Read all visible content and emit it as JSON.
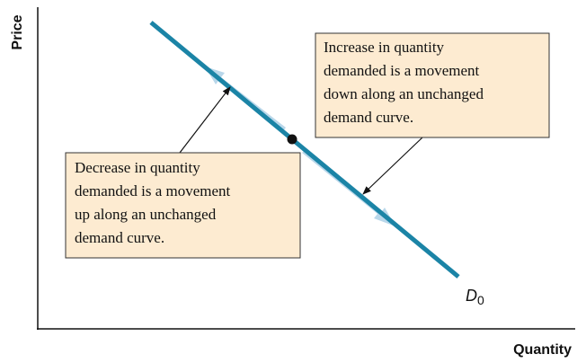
{
  "axes": {
    "y_label": "Price",
    "x_label": "Quantity"
  },
  "curve": {
    "label": "D",
    "subscript": "0"
  },
  "annotations": [
    {
      "lines": [
        "Increase in quantity",
        "demanded is a movement",
        "down along an unchanged",
        "demand curve."
      ]
    },
    {
      "lines": [
        "Decrease in quantity",
        "demanded is a movement",
        "up along an unchanged",
        "demand curve."
      ]
    }
  ]
}
